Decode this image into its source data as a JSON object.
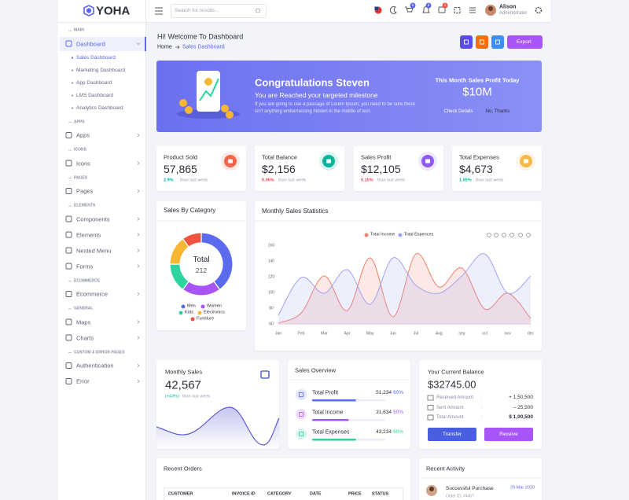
{
  "brand": "YOHA",
  "header": {
    "search_placeholder": "Search for results...",
    "badges": [
      "5",
      "5",
      "4"
    ],
    "user_name": "Alison",
    "user_role": "Administrator"
  },
  "sidebar": [
    {
      "heading": "MAIN",
      "items": [
        {
          "label": "Dashboard",
          "active": true,
          "active_sub": 0,
          "sub": [
            "Sales Dashboard",
            "Marketing Dashboard",
            "App Dashboard",
            "LMS Dashboard",
            "Analytics Dashboard"
          ]
        }
      ]
    },
    {
      "heading": "APPS",
      "items": [
        {
          "label": "Apps"
        }
      ]
    },
    {
      "heading": "ICONS",
      "items": [
        {
          "label": "Icons"
        }
      ]
    },
    {
      "heading": "PAGES",
      "items": [
        {
          "label": "Pages"
        }
      ]
    },
    {
      "heading": "ELEMENTS",
      "items": [
        {
          "label": "Components"
        },
        {
          "label": "Elements"
        },
        {
          "label": "Nested Menu"
        },
        {
          "label": "Forms"
        }
      ]
    },
    {
      "heading": "ECOMMERCE",
      "items": [
        {
          "label": "Ecommerce"
        }
      ]
    },
    {
      "heading": "GENERAL",
      "items": [
        {
          "label": "Maps"
        },
        {
          "label": "Charts"
        }
      ]
    },
    {
      "heading": "CUSTOM & ERROR PAGES",
      "items": [
        {
          "label": "Authentication"
        },
        {
          "label": "Error"
        }
      ]
    }
  ],
  "page": {
    "title": "Hi! Welcome To Dashboard",
    "breadcrumb": [
      "Home",
      "Sales Dashboard"
    ],
    "export_button": "Export"
  },
  "banner": {
    "title": "Congratulations Steven",
    "subtitle": "You are Reached your targeted milestone",
    "text": "If you are going to use a passage of Lorem Ipsum, you need to be sure there isn't anything embarrassing hidden in the middle of text.",
    "profit_label": "This Month Sales Profit Today",
    "profit_value": "$10M",
    "buttons": [
      "Check Details",
      "No, Thanks"
    ]
  },
  "stats": [
    {
      "label": "Product Sold",
      "value": "57,865",
      "change": "2.9%",
      "note": "than last week",
      "trend": "up",
      "color": "#f06548"
    },
    {
      "label": "Total Balance",
      "value": "$2,156",
      "change": "0.06%",
      "note": "than last week",
      "trend": "down",
      "color": "#0ab39c"
    },
    {
      "label": "Sales Profit",
      "value": "$12,105",
      "change": "0.15%",
      "note": "than last week",
      "trend": "down",
      "color": "#8c5cf0"
    },
    {
      "label": "Total Expenses",
      "value": "$4,673",
      "change": "1.05%",
      "note": "than last week",
      "trend": "up",
      "color": "#f7b84b"
    }
  ],
  "chart_data": [
    {
      "type": "pie",
      "title": "Sales By Category",
      "center_label": "Total",
      "center_value": 212,
      "categories": [
        "Men",
        "Women",
        "Kids",
        "Electronics",
        "Furniture"
      ],
      "values": [
        40,
        20,
        15,
        15,
        10
      ],
      "colors": [
        "#5b6bf0",
        "#a855f7",
        "#2dd4a0",
        "#f7b733",
        "#f0533f"
      ]
    },
    {
      "type": "line",
      "area": true,
      "title": "Monthly Sales Statistics",
      "grid": false,
      "categories": [
        "Jan",
        "Feb",
        "Mar",
        "Apr",
        "May",
        "Jun",
        "Jul",
        "Aug",
        "sep",
        "oct",
        "nov",
        "dec"
      ],
      "series": [
        {
          "name": "Total Income",
          "color": "#f1816a",
          "values": [
            62,
            75,
            122,
            78,
            145,
            70,
            150,
            108,
            132,
            80,
            100,
            68
          ]
        },
        {
          "name": "Total Expences",
          "color": "#9fa4f2",
          "values": [
            72,
            120,
            100,
            130,
            86,
            145,
            110,
            100,
            122,
            150,
            100,
            122
          ]
        }
      ],
      "ylim": [
        60,
        160
      ],
      "yticks": [
        60,
        80,
        100,
        120,
        140,
        160
      ]
    }
  ],
  "monthly_sales": {
    "title": "Monthly Sales",
    "value": "42,567",
    "change": "(+43%)",
    "note": "than last week"
  },
  "sales_overview": {
    "title": "Sales Overview",
    "rows": [
      {
        "label": "Total Profit",
        "value": "51,234",
        "percent": "60%",
        "color": "#5b6bf0"
      },
      {
        "label": "Total Income",
        "value": "31,634",
        "percent": "50%",
        "color": "#a855f7"
      },
      {
        "label": "Total Expenses",
        "value": "43,234",
        "percent": "60%",
        "color": "#2dd4a0"
      }
    ]
  },
  "balance": {
    "title": "Your Current Balance",
    "amount": "$32745.00",
    "separator": ":",
    "rows": [
      {
        "label": "Received Amount",
        "value": "+ 1,50,500"
      },
      {
        "label": "Sent Amount",
        "value": "– 25,500"
      },
      {
        "label": "Total Amount",
        "value": "$ 1,00,500"
      }
    ],
    "buttons": [
      "Transfer",
      "Receive"
    ]
  },
  "recent_orders": {
    "title": "Recent Orders",
    "columns": [
      "CUSTOMER",
      "INVOICE ID",
      "CATEGORY",
      "DATE",
      "PRICE",
      "STATUS"
    ]
  },
  "recent_activity": {
    "title": "Recent Activity",
    "items": [
      {
        "title": "Successful Purchase",
        "detail": "Order ID: #4457",
        "date": "29 Mar 2020"
      }
    ]
  }
}
